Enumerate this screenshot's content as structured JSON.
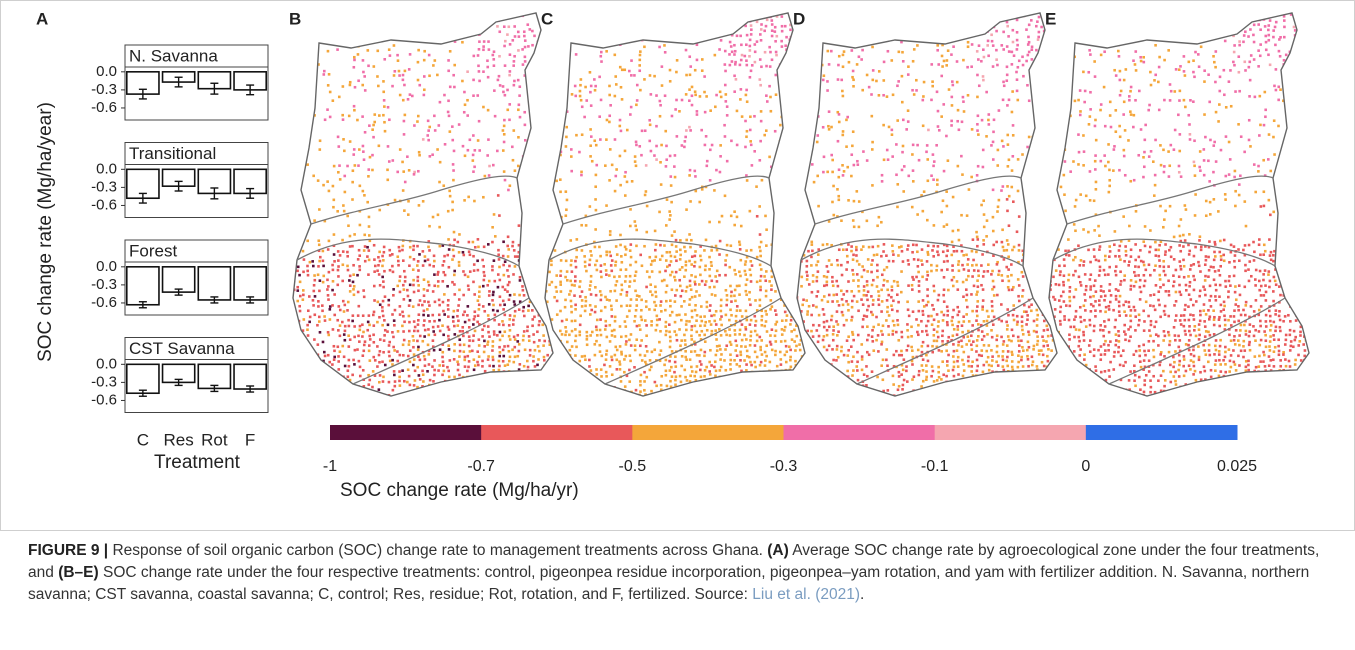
{
  "panel_a": {
    "label": "A",
    "y_label": "SOC change rate (Mg/ha/year)",
    "x_label": "Treatment",
    "categories": [
      "C",
      "Res",
      "Rot",
      "F"
    ]
  },
  "chart_data": [
    {
      "type": "bar",
      "title": "N. Savanna",
      "values": [
        -0.37,
        -0.17,
        -0.28,
        -0.3
      ],
      "errors": [
        0.08,
        0.08,
        0.09,
        0.08
      ],
      "ylim": [
        -0.8,
        0.08
      ],
      "yticks": [
        {
          "value": 0,
          "label": "0.0"
        },
        -0.3,
        -0.6
      ],
      "color": "#ffffff"
    },
    {
      "type": "bar",
      "title": "Transitional",
      "values": [
        -0.48,
        -0.28,
        -0.4,
        -0.4
      ],
      "errors": [
        0.08,
        0.08,
        0.09,
        0.08
      ],
      "ylim": [
        -0.8,
        0.08
      ],
      "yticks": [
        {
          "value": 0,
          "label": "0.0"
        },
        -0.3,
        -0.6
      ],
      "color": "#ffffff"
    },
    {
      "type": "bar",
      "title": "Forest",
      "values": [
        -0.63,
        -0.42,
        -0.55,
        -0.55
      ],
      "errors": [
        0.05,
        0.05,
        0.05,
        0.05
      ],
      "ylim": [
        -0.8,
        0.08
      ],
      "yticks": [
        {
          "value": 0,
          "label": "0.0"
        },
        -0.3,
        -0.6
      ],
      "color": "#ffffff"
    },
    {
      "type": "bar",
      "title": "CST Savanna",
      "values": [
        -0.48,
        -0.3,
        -0.4,
        -0.41
      ],
      "errors": [
        0.05,
        0.05,
        0.05,
        0.05
      ],
      "ylim": [
        -0.8,
        0.08
      ],
      "yticks": [
        {
          "value": 0,
          "label": "0.0"
        },
        -0.3,
        -0.6
      ],
      "color": "#ffffff"
    }
  ],
  "maps": [
    {
      "label": "B"
    },
    {
      "label": "C"
    },
    {
      "label": "D"
    },
    {
      "label": "E"
    }
  ],
  "colorbar": {
    "label": "SOC change rate (Mg/ha/yr)",
    "ticks": [
      -1,
      -0.7,
      -0.5,
      -0.3,
      -0.1,
      0,
      0.025
    ],
    "colors": [
      "#5a0f3a",
      "#e8585a",
      "#f4a63a",
      "#f06ea8",
      "#f5a6b0",
      "#2f6ee6"
    ]
  },
  "caption": {
    "label": "FIGURE 9 |",
    "parts": [
      "Response of soil organic carbon (SOC) change rate to management treatments across Ghana.",
      "(A)",
      "Average SOC change rate by agroecological zone under the four treatments, and",
      "(B–E)",
      "SOC change rate under the four respective treatments: control, pigeonpea residue incorporation, pigeonpea–yam rotation, and yam with fertilizer addition. N. Savanna, northern savanna; CST savanna, coastal savanna; C, control; Res, residue; Rot, rotation, and F, fertilized. Source:",
      "Liu et al. (2021)",
      "."
    ]
  }
}
